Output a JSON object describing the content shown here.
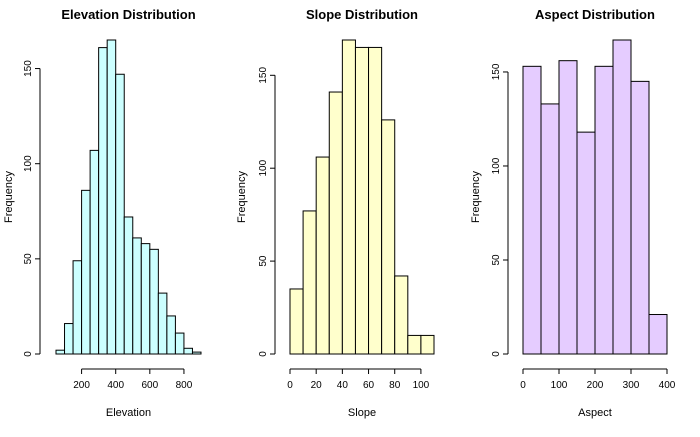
{
  "chart_data": [
    {
      "type": "bar",
      "title": "Elevation Distribution",
      "xlabel": "Elevation",
      "ylabel": "Frequency",
      "bin_edges": [
        50,
        100,
        150,
        200,
        250,
        300,
        350,
        400,
        450,
        500,
        550,
        600,
        650,
        700,
        750,
        800,
        850,
        900
      ],
      "values": [
        2,
        16,
        49,
        86,
        107,
        161,
        165,
        147,
        72,
        61,
        58,
        55,
        32,
        20,
        11,
        3,
        1
      ],
      "xticks": [
        200,
        400,
        600,
        800
      ],
      "yticks": [
        0,
        50,
        100,
        150
      ],
      "xlim": [
        50,
        900
      ],
      "ylim": [
        0,
        165
      ],
      "color": "#ccffff"
    },
    {
      "type": "bar",
      "title": "Slope Distribution",
      "xlabel": "Slope",
      "ylabel": "Frequency",
      "bin_edges": [
        0,
        10,
        20,
        30,
        40,
        50,
        60,
        70,
        80,
        90,
        100,
        110
      ],
      "values": [
        35,
        77,
        106,
        141,
        169,
        165,
        165,
        126,
        42,
        10,
        10
      ],
      "xticks": [
        0,
        20,
        40,
        60,
        80,
        100
      ],
      "yticks": [
        0,
        50,
        100,
        150
      ],
      "xlim": [
        0,
        110
      ],
      "ylim": [
        0,
        169
      ],
      "color": "#ffffcc"
    },
    {
      "type": "bar",
      "title": "Aspect Distribution",
      "xlabel": "Aspect",
      "ylabel": "Frequency",
      "bin_edges": [
        0,
        50,
        100,
        150,
        200,
        250,
        300,
        350,
        400
      ],
      "values": [
        153,
        133,
        156,
        118,
        153,
        167,
        145,
        21
      ],
      "xticks": [
        0,
        100,
        200,
        300,
        400
      ],
      "yticks": [
        0,
        50,
        100,
        150
      ],
      "xlim": [
        0,
        400
      ],
      "ylim": [
        0,
        167
      ],
      "color": "#e5ccff"
    }
  ]
}
